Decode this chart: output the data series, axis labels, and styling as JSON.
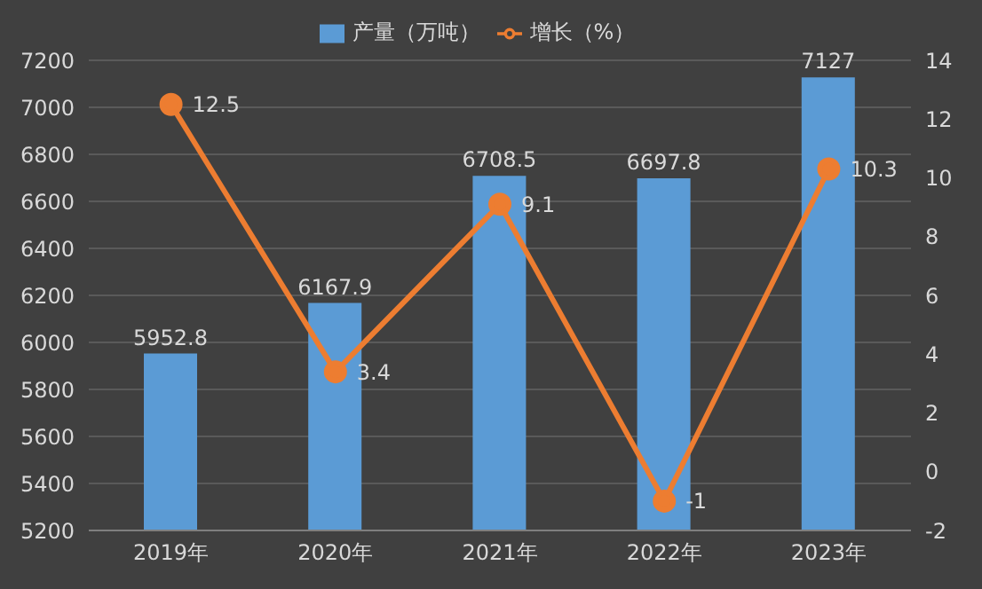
{
  "chart_data": {
    "type": "bar",
    "categories": [
      "2019年",
      "2020年",
      "2021年",
      "2022年",
      "2023年"
    ],
    "series": [
      {
        "name": "产量（万吨）",
        "color": "#5b9bd5",
        "values": [
          5952.8,
          6167.9,
          6708.5,
          6697.8,
          7127
        ]
      },
      {
        "name": "增长（%）",
        "type": "line",
        "axis": "y2",
        "color": "#ed7d31",
        "values": [
          12.5,
          3.4,
          9.1,
          -1,
          10.3
        ]
      }
    ],
    "ylim": [
      5200,
      7200
    ],
    "yticks": [
      5200,
      5400,
      5600,
      5800,
      6000,
      6200,
      6400,
      6600,
      6800,
      7000,
      7200
    ],
    "y2lim": [
      -2,
      14
    ],
    "y2ticks": [
      -2,
      0,
      2,
      4,
      6,
      8,
      10,
      12,
      14
    ],
    "grid": "y",
    "legend": "top",
    "marker": "circle",
    "data_labels": true
  }
}
